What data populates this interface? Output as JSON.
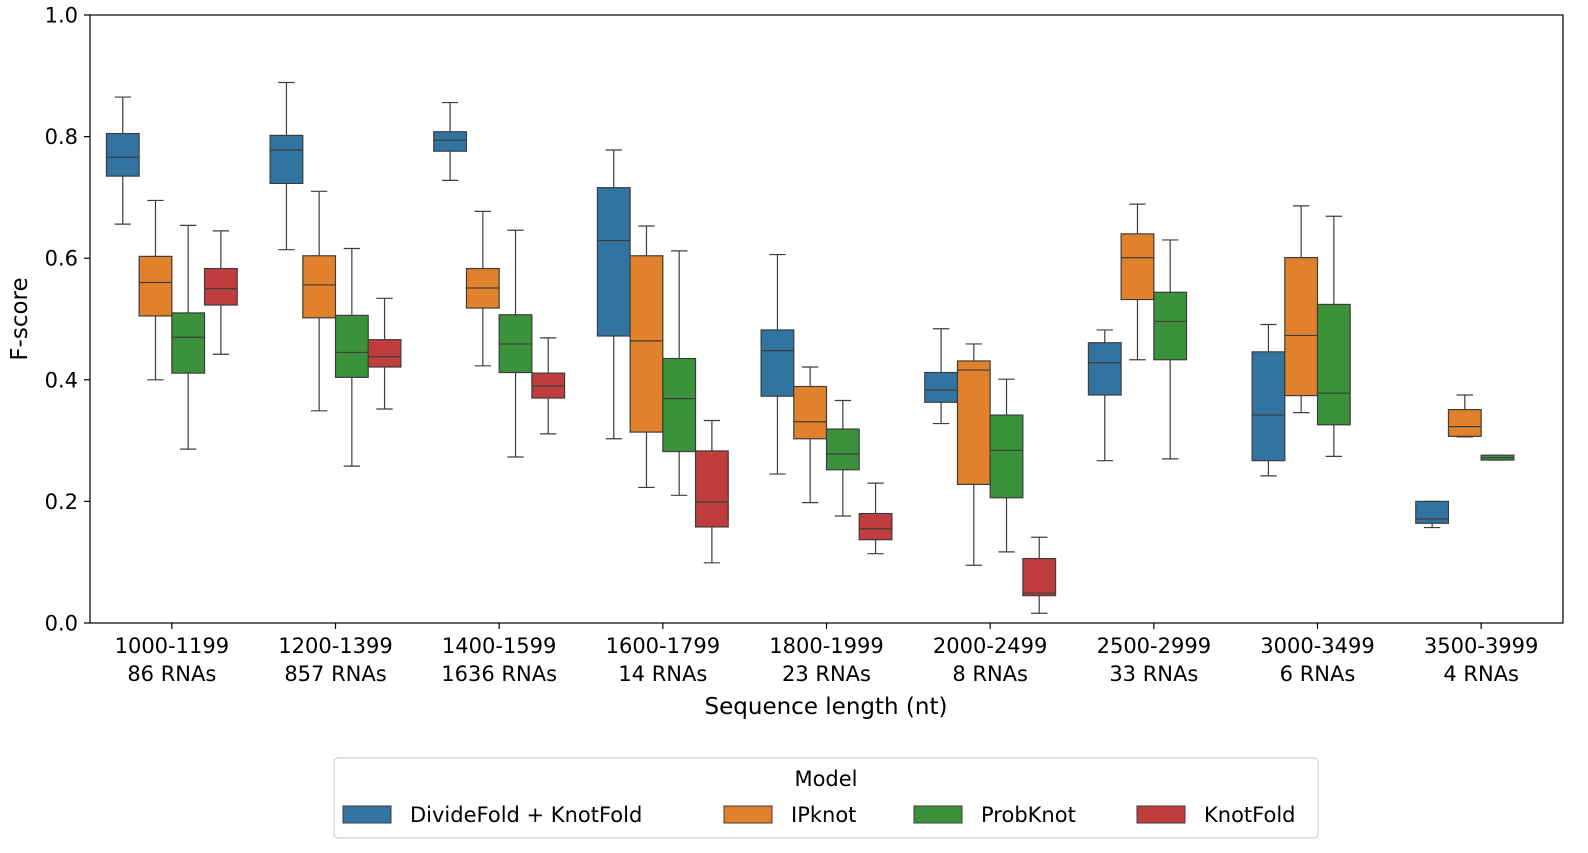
{
  "chart_data": {
    "type": "box",
    "xlabel": "Sequence length (nt)",
    "ylabel": "F-score",
    "ylim": [
      0.0,
      1.0
    ],
    "yticks": [
      "0.0",
      "0.2",
      "0.4",
      "0.6",
      "0.8",
      "1.0"
    ],
    "grid": false,
    "legend_title": "Model",
    "legend_position": "bottom-center",
    "categories": [
      {
        "range": "1000-1199",
        "count": "86 RNAs"
      },
      {
        "range": "1200-1399",
        "count": "857 RNAs"
      },
      {
        "range": "1400-1599",
        "count": "1636 RNAs"
      },
      {
        "range": "1600-1799",
        "count": "14 RNAs"
      },
      {
        "range": "1800-1999",
        "count": "23 RNAs"
      },
      {
        "range": "2000-2499",
        "count": "8 RNAs"
      },
      {
        "range": "2500-2999",
        "count": "33 RNAs"
      },
      {
        "range": "3000-3499",
        "count": "6 RNAs"
      },
      {
        "range": "3500-3999",
        "count": "4 RNAs"
      }
    ],
    "series": [
      {
        "name": "DivideFold + KnotFold",
        "color": "#3274a1",
        "boxes": [
          {
            "whislo": 0.656,
            "q1": 0.735,
            "med": 0.766,
            "q3": 0.805,
            "whishi": 0.865
          },
          {
            "whislo": 0.614,
            "q1": 0.723,
            "med": 0.778,
            "q3": 0.802,
            "whishi": 0.889
          },
          {
            "whislo": 0.728,
            "q1": 0.776,
            "med": 0.794,
            "q3": 0.808,
            "whishi": 0.856
          },
          {
            "whislo": 0.303,
            "q1": 0.472,
            "med": 0.629,
            "q3": 0.716,
            "whishi": 0.778
          },
          {
            "whislo": 0.245,
            "q1": 0.373,
            "med": 0.448,
            "q3": 0.482,
            "whishi": 0.606
          },
          {
            "whislo": 0.328,
            "q1": 0.363,
            "med": 0.383,
            "q3": 0.412,
            "whishi": 0.484
          },
          {
            "whislo": 0.267,
            "q1": 0.375,
            "med": 0.428,
            "q3": 0.461,
            "whishi": 0.482
          },
          {
            "whislo": 0.242,
            "q1": 0.267,
            "med": 0.342,
            "q3": 0.446,
            "whishi": 0.491
          },
          {
            "whislo": 0.157,
            "q1": 0.164,
            "med": 0.171,
            "q3": 0.2,
            "whishi": 0.2
          }
        ]
      },
      {
        "name": "IPknot",
        "color": "#e1812c",
        "boxes": [
          {
            "whislo": 0.4,
            "q1": 0.505,
            "med": 0.56,
            "q3": 0.603,
            "whishi": 0.695
          },
          {
            "whislo": 0.349,
            "q1": 0.502,
            "med": 0.556,
            "q3": 0.604,
            "whishi": 0.71
          },
          {
            "whislo": 0.423,
            "q1": 0.518,
            "med": 0.551,
            "q3": 0.583,
            "whishi": 0.677
          },
          {
            "whislo": 0.223,
            "q1": 0.314,
            "med": 0.464,
            "q3": 0.604,
            "whishi": 0.653
          },
          {
            "whislo": 0.198,
            "q1": 0.303,
            "med": 0.331,
            "q3": 0.389,
            "whishi": 0.421
          },
          {
            "whislo": 0.095,
            "q1": 0.228,
            "med": 0.416,
            "q3": 0.431,
            "whishi": 0.459
          },
          {
            "whislo": 0.433,
            "q1": 0.532,
            "med": 0.601,
            "q3": 0.64,
            "whishi": 0.689
          },
          {
            "whislo": 0.346,
            "q1": 0.374,
            "med": 0.473,
            "q3": 0.601,
            "whishi": 0.686
          },
          {
            "whislo": 0.306,
            "q1": 0.307,
            "med": 0.323,
            "q3": 0.351,
            "whishi": 0.375
          }
        ]
      },
      {
        "name": "ProbKnot",
        "color": "#3a923a",
        "boxes": [
          {
            "whislo": 0.286,
            "q1": 0.411,
            "med": 0.47,
            "q3": 0.51,
            "whishi": 0.654
          },
          {
            "whislo": 0.258,
            "q1": 0.404,
            "med": 0.445,
            "q3": 0.506,
            "whishi": 0.616
          },
          {
            "whislo": 0.273,
            "q1": 0.412,
            "med": 0.459,
            "q3": 0.507,
            "whishi": 0.646
          },
          {
            "whislo": 0.21,
            "q1": 0.282,
            "med": 0.369,
            "q3": 0.435,
            "whishi": 0.612
          },
          {
            "whislo": 0.176,
            "q1": 0.252,
            "med": 0.278,
            "q3": 0.319,
            "whishi": 0.366
          },
          {
            "whislo": 0.117,
            "q1": 0.206,
            "med": 0.284,
            "q3": 0.342,
            "whishi": 0.401
          },
          {
            "whislo": 0.27,
            "q1": 0.433,
            "med": 0.496,
            "q3": 0.544,
            "whishi": 0.63
          },
          {
            "whislo": 0.274,
            "q1": 0.326,
            "med": 0.378,
            "q3": 0.524,
            "whishi": 0.669
          },
          {
            "whislo": 0.268,
            "q1": 0.268,
            "med": 0.272,
            "q3": 0.276,
            "whishi": 0.276
          }
        ]
      },
      {
        "name": "KnotFold",
        "color": "#c03d3e",
        "boxes": [
          {
            "whislo": 0.442,
            "q1": 0.523,
            "med": 0.55,
            "q3": 0.583,
            "whishi": 0.645
          },
          {
            "whislo": 0.352,
            "q1": 0.421,
            "med": 0.438,
            "q3": 0.466,
            "whishi": 0.534
          },
          {
            "whislo": 0.311,
            "q1": 0.37,
            "med": 0.39,
            "q3": 0.411,
            "whishi": 0.469
          },
          {
            "whislo": 0.099,
            "q1": 0.158,
            "med": 0.199,
            "q3": 0.283,
            "whishi": 0.333
          },
          {
            "whislo": 0.114,
            "q1": 0.137,
            "med": 0.155,
            "q3": 0.18,
            "whishi": 0.23
          },
          {
            "whislo": 0.016,
            "q1": 0.045,
            "med": 0.049,
            "q3": 0.106,
            "whishi": 0.141
          },
          null,
          null,
          null
        ]
      }
    ]
  }
}
